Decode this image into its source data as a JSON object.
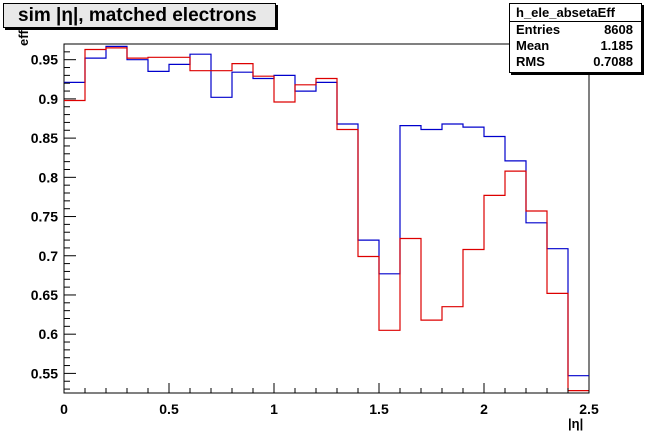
{
  "title": "sim |η|, matched electrons",
  "stats": {
    "name": "h_ele_absetaEff",
    "rows": [
      {
        "label": "Entries",
        "value": "8608"
      },
      {
        "label": "Mean",
        "value": "1.185"
      },
      {
        "label": "RMS",
        "value": "0.7088"
      }
    ]
  },
  "chart_data": {
    "type": "line",
    "title": "sim |η|, matched electrons",
    "xlabel": "|η|",
    "ylabel": "eff",
    "xlim": [
      0,
      2.5
    ],
    "ylim": [
      0.525,
      0.97
    ],
    "grid": false,
    "bin_edges": [
      0,
      0.1,
      0.2,
      0.3,
      0.4,
      0.5,
      0.6,
      0.7,
      0.8,
      0.9,
      1.0,
      1.1,
      1.2,
      1.3,
      1.4,
      1.5,
      1.6,
      1.7,
      1.8,
      1.9,
      2.0,
      2.1,
      2.2,
      2.3,
      2.4,
      2.5
    ],
    "x_ticks": [
      {
        "value": 0,
        "label": "0"
      },
      {
        "value": 0.5,
        "label": "0.5"
      },
      {
        "value": 1,
        "label": "1"
      },
      {
        "value": 1.5,
        "label": "1.5"
      },
      {
        "value": 2,
        "label": "2"
      },
      {
        "value": 2.5,
        "label": "2.5"
      }
    ],
    "y_ticks": [
      {
        "value": 0.55,
        "label": "0.55"
      },
      {
        "value": 0.6,
        "label": "0.6"
      },
      {
        "value": 0.65,
        "label": "0.65"
      },
      {
        "value": 0.7,
        "label": "0.7"
      },
      {
        "value": 0.75,
        "label": "0.75"
      },
      {
        "value": 0.8,
        "label": "0.8"
      },
      {
        "value": 0.85,
        "label": "0.85"
      },
      {
        "value": 0.9,
        "label": "0.9"
      },
      {
        "value": 0.95,
        "label": "0.95"
      }
    ],
    "series": [
      {
        "color": "#0000cc",
        "values": [
          0.921,
          0.952,
          0.967,
          0.95,
          0.935,
          0.944,
          0.957,
          0.902,
          0.934,
          0.926,
          0.93,
          0.91,
          0.921,
          0.868,
          0.72,
          0.677,
          0.866,
          0.861,
          0.868,
          0.864,
          0.852,
          0.821,
          0.742,
          0.709,
          0.547
        ]
      },
      {
        "color": "#dd0000",
        "values": [
          0.898,
          0.963,
          0.965,
          0.952,
          0.953,
          0.953,
          0.936,
          0.936,
          0.945,
          0.929,
          0.896,
          0.918,
          0.926,
          0.861,
          0.699,
          0.605,
          0.722,
          0.618,
          0.635,
          0.708,
          0.777,
          0.808,
          0.757,
          0.652,
          0.528
        ]
      }
    ]
  }
}
